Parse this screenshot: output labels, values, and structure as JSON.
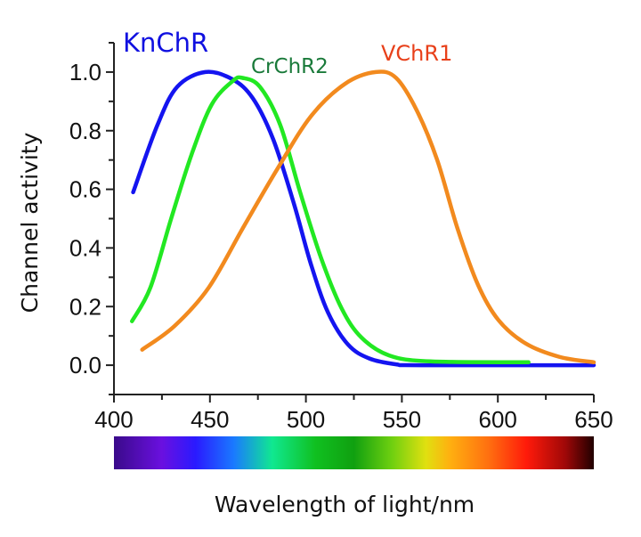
{
  "chart_data": {
    "type": "line",
    "title": "",
    "xlabel": "Wavelength of light/nm",
    "ylabel": "Channel activity",
    "xlim": [
      400,
      650
    ],
    "ylim": [
      -0.1,
      1.1
    ],
    "xticks": [
      400,
      450,
      500,
      550,
      600,
      650
    ],
    "xtick_labels": [
      "400",
      "450",
      "500",
      "550",
      "600",
      "650"
    ],
    "yticks": [
      0.0,
      0.2,
      0.4,
      0.6,
      0.8,
      1.0
    ],
    "ytick_labels": [
      "0.0",
      "0.2",
      "0.4",
      "0.6",
      "0.8",
      "1.0"
    ],
    "grid": false,
    "legend": "inline labels above curves",
    "colorbar": "visible spectrum 400-650 nm",
    "series": [
      {
        "name": "KnChR",
        "color": "#1414f0",
        "label_color": "#1010e0",
        "x": [
          410,
          422.7,
          433,
          447.6,
          461.8,
          472.4,
          483,
          493.8,
          502.6,
          511.5,
          522,
          533,
          547,
          560,
          650
        ],
        "y": [
          0.59,
          0.82,
          0.95,
          1.0,
          0.975,
          0.91,
          0.77,
          0.55,
          0.345,
          0.18,
          0.07,
          0.023,
          0.003,
          0.0,
          0.0
        ]
      },
      {
        "name": "CrChR2",
        "color": "#22e822",
        "label_color": "#1a7a3a",
        "x": [
          409.4,
          419,
          429.8,
          440.5,
          451,
          462,
          467,
          476,
          486.6,
          497,
          507.9,
          518.6,
          529,
          543.5,
          564.8,
          616
        ],
        "y": [
          0.15,
          0.265,
          0.5,
          0.72,
          0.89,
          0.97,
          0.98,
          0.95,
          0.82,
          0.59,
          0.366,
          0.194,
          0.094,
          0.033,
          0.013,
          0.01
        ]
      },
      {
        "name": "VChR1",
        "color": "#f28a1e",
        "label_color": "#e8401a",
        "x": [
          414.7,
          431.6,
          449.4,
          467,
          485,
          502.6,
          520.4,
          536.4,
          547,
          557.7,
          568.4,
          579,
          589.6,
          600.3,
          614.5,
          632.3,
          650
        ],
        "y": [
          0.053,
          0.134,
          0.265,
          0.466,
          0.668,
          0.849,
          0.96,
          1.0,
          0.98,
          0.87,
          0.7,
          0.466,
          0.275,
          0.154,
          0.074,
          0.028,
          0.01
        ]
      }
    ]
  }
}
